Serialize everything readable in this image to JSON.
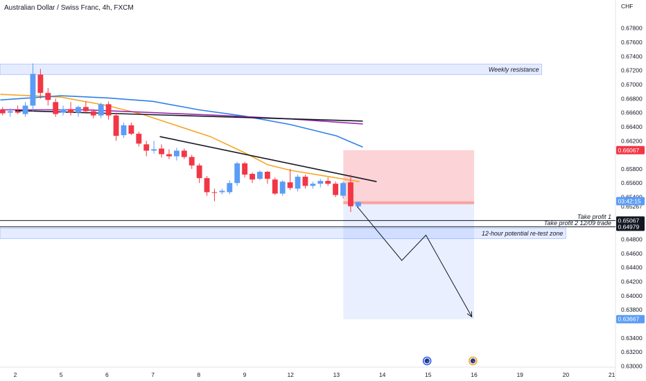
{
  "title": "Australian Dollar / Swiss Franc, 4h, FXCM",
  "chart_data": {
    "type": "candlestick",
    "currency_label": "CHF",
    "ylim": [
      0.63,
      0.68
    ],
    "y_ticks": [
      "0.67800",
      "0.67600",
      "0.67400",
      "0.67200",
      "0.67000",
      "0.66800",
      "0.66600",
      "0.66400",
      "0.66200",
      "0.65800",
      "0.65600",
      "0.65400",
      "0.65267",
      "0.64800",
      "0.64600",
      "0.64400",
      "0.64200",
      "0.64000",
      "0.63800",
      "0.63400",
      "0.63200",
      "0.63000"
    ],
    "x_ticks": [
      {
        "label": "2",
        "x": 0
      },
      {
        "label": "5",
        "x": 4
      },
      {
        "label": "6",
        "x": 8
      },
      {
        "label": "7",
        "x": 12
      },
      {
        "label": "8",
        "x": 16
      },
      {
        "label": "9",
        "x": 20
      },
      {
        "label": "12",
        "x": 24
      },
      {
        "label": "13",
        "x": 28
      },
      {
        "label": "14",
        "x": 32
      },
      {
        "label": "15",
        "x": 36
      },
      {
        "label": "16",
        "x": 40
      },
      {
        "label": "19",
        "x": 44
      },
      {
        "label": "20",
        "x": 48
      },
      {
        "label": "21",
        "x": 52
      }
    ],
    "x_range": [
      -1.3,
      52
    ],
    "price_badges": [
      {
        "text": "0.66067",
        "value": 0.66067,
        "color": "#f23645"
      },
      {
        "text": "03:42:15",
        "value": 0.65343,
        "color": "#5b9cf6"
      },
      {
        "text": "0.65067",
        "value": 0.65067,
        "color": "#131722"
      },
      {
        "text": "0.64979",
        "value": 0.64979,
        "color": "#131722"
      },
      {
        "text": "0.63667",
        "value": 0.63667,
        "color": "#5b9cf6"
      }
    ],
    "zones": [
      {
        "label": "Weekly resistance",
        "from": 0.6714,
        "to": 0.6729,
        "x_end": 45.9
      },
      {
        "label": "12-hour potential re-test zone",
        "from": 0.6481,
        "to": 0.6496,
        "x_end": 48
      }
    ],
    "levels": [
      {
        "label": "Take profit 1",
        "value": 0.65067
      },
      {
        "label": "Take profit 2 12/09 trade",
        "value": 0.64979
      }
    ],
    "position": {
      "entry": 0.6532,
      "stop": 0.66067,
      "target": 0.63667,
      "x_from": 28.6,
      "x_to": 40
    },
    "projection": [
      {
        "x": 29.8,
        "y": 0.65267
      },
      {
        "x": 33.7,
        "y": 0.645
      },
      {
        "x": 35.8,
        "y": 0.6486
      },
      {
        "x": 39.8,
        "y": 0.637
      }
    ],
    "trendlines": [
      {
        "color": "#131722",
        "points": [
          {
            "x": 0,
            "y": 0.6663
          },
          {
            "x": 30.3,
            "y": 0.6648
          }
        ]
      },
      {
        "color": "#131722",
        "points": [
          {
            "x": 12.6,
            "y": 0.6626
          },
          {
            "x": 31.5,
            "y": 0.6562
          }
        ]
      }
    ],
    "moving_averages": [
      {
        "color": "#f5a623",
        "points": [
          [
            -1.3,
            0.6686
          ],
          [
            4,
            0.6682
          ],
          [
            8,
            0.667
          ],
          [
            11,
            0.6658
          ],
          [
            14,
            0.6642
          ],
          [
            17,
            0.6626
          ],
          [
            20,
            0.6603
          ],
          [
            22,
            0.6586
          ],
          [
            24,
            0.6578
          ],
          [
            27,
            0.657
          ],
          [
            30,
            0.6562
          ]
        ]
      },
      {
        "color": "#2f7fe8",
        "points": [
          [
            -1.3,
            0.6678
          ],
          [
            4,
            0.6684
          ],
          [
            8,
            0.6681
          ],
          [
            12,
            0.6676
          ],
          [
            16,
            0.6664
          ],
          [
            20,
            0.6655
          ],
          [
            24,
            0.6643
          ],
          [
            28,
            0.6627
          ],
          [
            30.3,
            0.6611
          ]
        ]
      },
      {
        "color": "#9c27b0",
        "points": [
          [
            -1.3,
            0.6664
          ],
          [
            6,
            0.6664
          ],
          [
            12,
            0.666
          ],
          [
            18,
            0.6656
          ],
          [
            24,
            0.6651
          ],
          [
            30.3,
            0.6644
          ]
        ]
      }
    ],
    "candles": [
      {
        "o": 0.6664,
        "h": 0.6668,
        "l": 0.6656,
        "c": 0.6659
      },
      {
        "o": 0.666,
        "h": 0.6666,
        "l": 0.6654,
        "c": 0.6662
      },
      {
        "o": 0.6662,
        "h": 0.667,
        "l": 0.6658,
        "c": 0.666
      },
      {
        "o": 0.6658,
        "h": 0.6675,
        "l": 0.6654,
        "c": 0.667
      },
      {
        "o": 0.667,
        "h": 0.673,
        "l": 0.6662,
        "c": 0.6715
      },
      {
        "o": 0.6714,
        "h": 0.6722,
        "l": 0.668,
        "c": 0.6688
      },
      {
        "o": 0.6688,
        "h": 0.6695,
        "l": 0.667,
        "c": 0.6678
      },
      {
        "o": 0.6675,
        "h": 0.668,
        "l": 0.6654,
        "c": 0.6658
      },
      {
        "o": 0.666,
        "h": 0.667,
        "l": 0.6656,
        "c": 0.6665
      },
      {
        "o": 0.6665,
        "h": 0.6675,
        "l": 0.6656,
        "c": 0.666
      },
      {
        "o": 0.666,
        "h": 0.667,
        "l": 0.6654,
        "c": 0.6668
      },
      {
        "o": 0.6668,
        "h": 0.6676,
        "l": 0.666,
        "c": 0.6662
      },
      {
        "o": 0.6662,
        "h": 0.6665,
        "l": 0.6652,
        "c": 0.6656
      },
      {
        "o": 0.6656,
        "h": 0.6674,
        "l": 0.6652,
        "c": 0.6672
      },
      {
        "o": 0.6672,
        "h": 0.6676,
        "l": 0.665,
        "c": 0.6656
      },
      {
        "o": 0.6656,
        "h": 0.666,
        "l": 0.662,
        "c": 0.6627
      },
      {
        "o": 0.6628,
        "h": 0.6646,
        "l": 0.6624,
        "c": 0.6642
      },
      {
        "o": 0.6642,
        "h": 0.6646,
        "l": 0.6628,
        "c": 0.663
      },
      {
        "o": 0.663,
        "h": 0.6633,
        "l": 0.6612,
        "c": 0.6616
      },
      {
        "o": 0.6615,
        "h": 0.662,
        "l": 0.6598,
        "c": 0.6606
      },
      {
        "o": 0.6606,
        "h": 0.662,
        "l": 0.6602,
        "c": 0.6608
      },
      {
        "o": 0.6609,
        "h": 0.6615,
        "l": 0.6596,
        "c": 0.6601
      },
      {
        "o": 0.6601,
        "h": 0.6608,
        "l": 0.6594,
        "c": 0.6598
      },
      {
        "o": 0.6598,
        "h": 0.661,
        "l": 0.6592,
        "c": 0.6606
      },
      {
        "o": 0.6606,
        "h": 0.6609,
        "l": 0.6594,
        "c": 0.6597
      },
      {
        "o": 0.6597,
        "h": 0.66,
        "l": 0.658,
        "c": 0.6585
      },
      {
        "o": 0.6585,
        "h": 0.6588,
        "l": 0.656,
        "c": 0.6567
      },
      {
        "o": 0.6567,
        "h": 0.657,
        "l": 0.6542,
        "c": 0.6547
      },
      {
        "o": 0.6547,
        "h": 0.6552,
        "l": 0.6534,
        "c": 0.6546
      },
      {
        "o": 0.6547,
        "h": 0.6552,
        "l": 0.6544,
        "c": 0.6549
      },
      {
        "o": 0.6547,
        "h": 0.6564,
        "l": 0.6544,
        "c": 0.656
      },
      {
        "o": 0.656,
        "h": 0.659,
        "l": 0.6556,
        "c": 0.6588
      },
      {
        "o": 0.6588,
        "h": 0.659,
        "l": 0.6568,
        "c": 0.6572
      },
      {
        "o": 0.6573,
        "h": 0.6575,
        "l": 0.656,
        "c": 0.6565
      },
      {
        "o": 0.6566,
        "h": 0.6578,
        "l": 0.6564,
        "c": 0.6576
      },
      {
        "o": 0.6576,
        "h": 0.6577,
        "l": 0.6559,
        "c": 0.6566
      },
      {
        "o": 0.6565,
        "h": 0.6568,
        "l": 0.6543,
        "c": 0.6545
      },
      {
        "o": 0.6545,
        "h": 0.6564,
        "l": 0.6542,
        "c": 0.6562
      },
      {
        "o": 0.6561,
        "h": 0.658,
        "l": 0.655,
        "c": 0.6553
      },
      {
        "o": 0.6552,
        "h": 0.6572,
        "l": 0.6548,
        "c": 0.6569
      },
      {
        "o": 0.6569,
        "h": 0.6572,
        "l": 0.6552,
        "c": 0.6556
      },
      {
        "o": 0.6556,
        "h": 0.6562,
        "l": 0.6552,
        "c": 0.6559
      },
      {
        "o": 0.6559,
        "h": 0.6566,
        "l": 0.6554,
        "c": 0.6563
      },
      {
        "o": 0.6563,
        "h": 0.6568,
        "l": 0.6556,
        "c": 0.6559
      },
      {
        "o": 0.6559,
        "h": 0.6562,
        "l": 0.654,
        "c": 0.6543
      },
      {
        "o": 0.6542,
        "h": 0.6562,
        "l": 0.6538,
        "c": 0.656
      },
      {
        "o": 0.6561,
        "h": 0.6572,
        "l": 0.6519,
        "c": 0.6527
      },
      {
        "o": 0.6527,
        "h": 0.6534,
        "l": 0.6525,
        "c": 0.6533
      }
    ],
    "events": [
      {
        "x": 35.9,
        "type": "au-flag",
        "color": "#2962ff"
      },
      {
        "x": 39.9,
        "type": "au-flag",
        "color": "#f5a623"
      }
    ]
  }
}
